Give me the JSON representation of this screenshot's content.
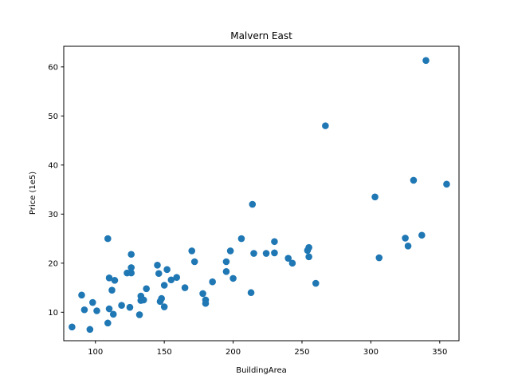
{
  "chart_data": {
    "type": "scatter",
    "title": "Malvern East",
    "xlabel": "BuildingArea",
    "ylabel": "Price (1e5)",
    "xlim": [
      77,
      364
    ],
    "ylim": [
      4.2,
      64.2
    ],
    "xticks": [
      100,
      150,
      200,
      250,
      300,
      350
    ],
    "yticks": [
      10,
      20,
      30,
      40,
      50,
      60
    ],
    "grid": false,
    "marker_color": "#1f77b4",
    "points": [
      [
        83,
        7.0
      ],
      [
        90,
        13.5
      ],
      [
        92,
        10.5
      ],
      [
        96,
        6.5
      ],
      [
        98,
        12.0
      ],
      [
        101,
        10.3
      ],
      [
        109,
        7.8
      ],
      [
        109,
        25.0
      ],
      [
        110,
        17.0
      ],
      [
        110,
        10.7
      ],
      [
        112,
        14.5
      ],
      [
        113,
        9.6
      ],
      [
        114,
        16.5
      ],
      [
        119,
        11.4
      ],
      [
        123,
        18.0
      ],
      [
        125,
        11.0
      ],
      [
        126,
        19.1
      ],
      [
        126,
        18.0
      ],
      [
        126,
        21.8
      ],
      [
        132,
        9.5
      ],
      [
        133,
        13.3
      ],
      [
        133,
        12.4
      ],
      [
        135,
        12.5
      ],
      [
        137,
        14.8
      ],
      [
        145,
        19.6
      ],
      [
        146,
        17.9
      ],
      [
        147,
        12.2
      ],
      [
        148,
        12.8
      ],
      [
        150,
        15.5
      ],
      [
        150,
        11.1
      ],
      [
        152,
        18.7
      ],
      [
        155,
        16.6
      ],
      [
        159,
        17.1
      ],
      [
        165,
        15.0
      ],
      [
        170,
        22.5
      ],
      [
        172,
        20.3
      ],
      [
        178,
        13.8
      ],
      [
        180,
        12.5
      ],
      [
        180,
        11.8
      ],
      [
        185,
        16.2
      ],
      [
        195,
        20.3
      ],
      [
        195,
        18.3
      ],
      [
        198,
        22.5
      ],
      [
        200,
        16.9
      ],
      [
        206,
        25.0
      ],
      [
        213,
        14.0
      ],
      [
        214,
        32.0
      ],
      [
        215,
        22.0
      ],
      [
        224,
        22.0
      ],
      [
        230,
        24.4
      ],
      [
        230,
        22.1
      ],
      [
        240,
        21.0
      ],
      [
        243,
        20.0
      ],
      [
        254,
        22.6
      ],
      [
        255,
        23.2
      ],
      [
        255,
        21.3
      ],
      [
        260,
        15.9
      ],
      [
        267,
        48.0
      ],
      [
        303,
        33.5
      ],
      [
        306,
        21.1
      ],
      [
        325,
        25.1
      ],
      [
        327,
        23.5
      ],
      [
        331,
        36.9
      ],
      [
        337,
        25.7
      ],
      [
        340,
        61.3
      ],
      [
        355,
        36.1
      ]
    ]
  }
}
